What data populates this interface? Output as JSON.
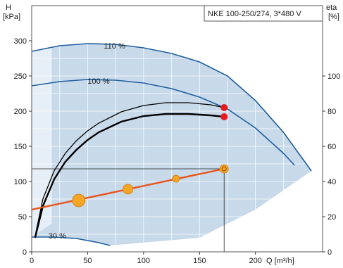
{
  "chart_data": {
    "type": "line",
    "title": "NKE 100-250/274, 3*480 V",
    "y_left_label_line1": "H",
    "y_left_label_line2": "[kPa]",
    "y_right_label_line1": "eta",
    "y_right_label_line2": "[%]",
    "xlabel": "Q [m³/h]",
    "xlim": [
      0,
      260
    ],
    "ylim": [
      0,
      350
    ],
    "y2lim": [
      0,
      140
    ],
    "x_ticks": [
      0,
      50,
      100,
      150,
      200
    ],
    "y_ticks": [
      0,
      50,
      100,
      150,
      200,
      250,
      300
    ],
    "y2_ticks": [
      0,
      20,
      40,
      60,
      80,
      100
    ],
    "grid": true,
    "colors": {
      "envelope_fill": "#c8d9ea",
      "envelope_light": "#e6eff7",
      "speed_curves": "#1f5fa0",
      "duty_curves": "#000000",
      "system_curve": "#e8541c",
      "duty_point": "#e8181c",
      "efficiency_marker": "#f5a623"
    },
    "speed_curves": [
      {
        "label": "110 %",
        "x": [
          0,
          25,
          50,
          75,
          100,
          125,
          150,
          175,
          200,
          225,
          250
        ],
        "y": [
          285,
          293,
          296,
          295,
          290,
          282,
          270,
          250,
          215,
          170,
          115
        ]
      },
      {
        "label": "100 %",
        "x": [
          0,
          25,
          50,
          75,
          100,
          125,
          150,
          175,
          200,
          225,
          235
        ],
        "y": [
          236,
          242,
          245,
          244,
          240,
          232,
          220,
          203,
          176,
          140,
          123
        ]
      },
      {
        "label": "30 %",
        "x": [
          0,
          20,
          40,
          60,
          70
        ],
        "y": [
          21,
          21,
          19,
          13,
          9
        ]
      }
    ],
    "head_curves": [
      {
        "x": [
          3,
          10,
          20,
          30,
          40,
          50,
          60,
          80,
          100,
          120,
          140,
          160,
          172
        ],
        "y": [
          22,
          75,
          115,
          140,
          158,
          172,
          183,
          199,
          208,
          212,
          212,
          209,
          205
        ]
      },
      {
        "x": [
          3,
          10,
          20,
          30,
          40,
          50,
          60,
          80,
          100,
          120,
          140,
          160,
          172
        ],
        "y": [
          20,
          65,
          103,
          128,
          145,
          159,
          170,
          185,
          193,
          196,
          196,
          194,
          192
        ]
      }
    ],
    "system_curve": {
      "x": [
        0,
        172
      ],
      "y": [
        60,
        118
      ]
    },
    "duty_points": [
      {
        "x": 172,
        "y": 205
      },
      {
        "x": 172,
        "y": 192
      }
    ],
    "efficiency_markers": [
      {
        "x": 42,
        "y": 73,
        "size": 9
      },
      {
        "x": 86,
        "y": 89,
        "size": 7
      },
      {
        "x": 129,
        "y": 104,
        "size": 5
      },
      {
        "x": 172,
        "y": 118,
        "size": 6
      }
    ],
    "operating_point": {
      "x": 172,
      "y": 118
    }
  }
}
